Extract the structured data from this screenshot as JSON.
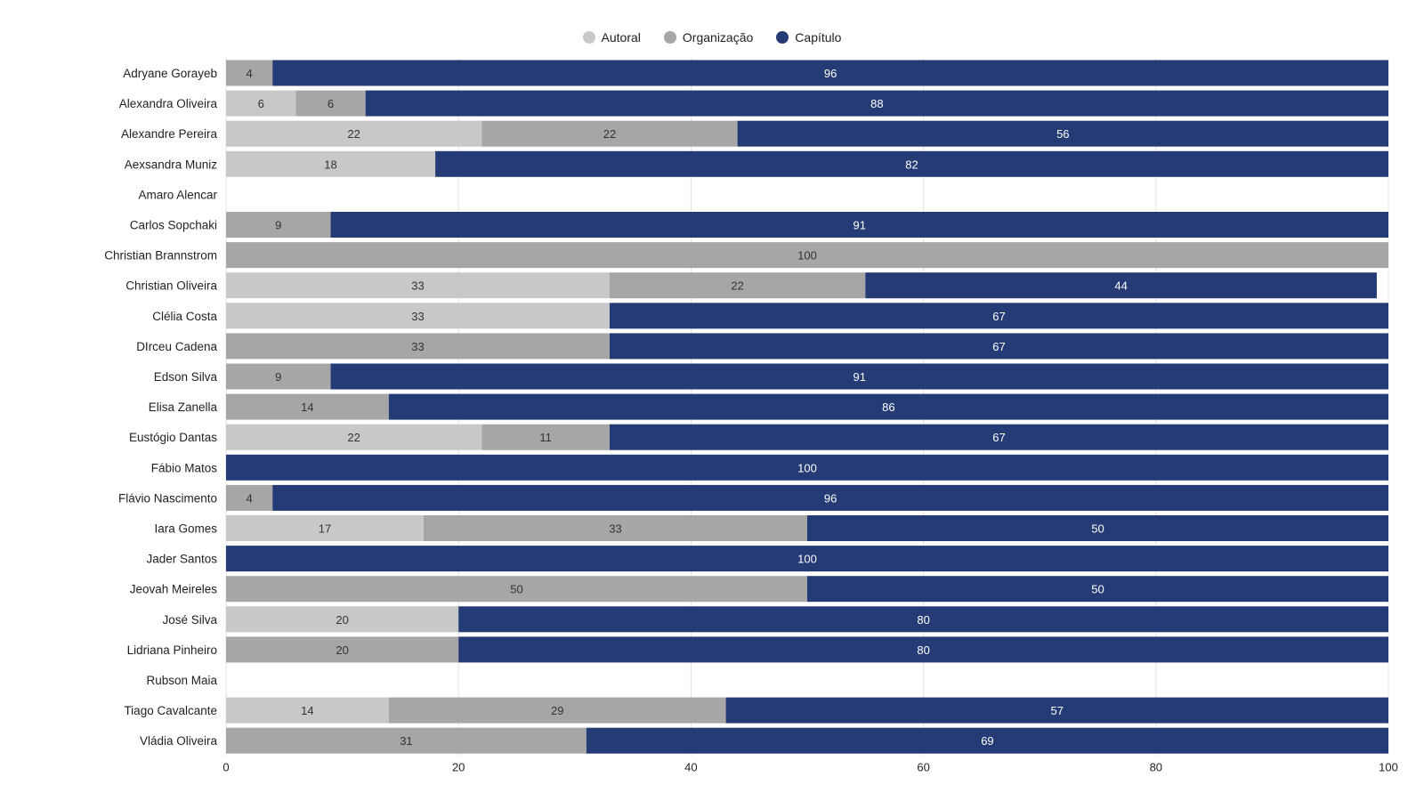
{
  "chart_data": {
    "type": "bar",
    "orientation": "horizontal",
    "stacked": true,
    "title": "",
    "xlabel": "",
    "ylabel": "",
    "xlim": [
      0,
      100
    ],
    "x_ticks": [
      0,
      20,
      40,
      60,
      80,
      100
    ],
    "grid": true,
    "legend_position": "top-center",
    "categories": [
      "Adryane Gorayeb",
      "Alexandra Oliveira",
      "Alexandre Pereira",
      "Aexsandra Muniz",
      "Amaro Alencar",
      "Carlos Sopchaki",
      "Christian Brannstrom",
      "Christian Oliveira",
      "Clélia Costa",
      "DIrceu Cadena",
      "Edson Silva",
      "Elisa Zanella",
      "Eustógio Dantas",
      "Fábio Matos",
      "Flávio Nascimento",
      "Iara Gomes",
      "Jader Santos",
      "Jeovah Meireles",
      "José Silva",
      "Lidriana Pinheiro",
      "Rubson Maia",
      "Tiago Cavalcante",
      "Vládia Oliveira"
    ],
    "series": [
      {
        "name": "Autoral",
        "color": "#c8c8c8",
        "label_color": "#333333",
        "values": [
          0,
          6,
          22,
          18,
          0,
          0,
          0,
          33,
          33,
          0,
          0,
          0,
          22,
          0,
          0,
          17,
          0,
          0,
          20,
          0,
          0,
          14,
          0
        ]
      },
      {
        "name": "Organização",
        "color": "#a6a6a6",
        "label_color": "#333333",
        "values": [
          4,
          6,
          22,
          0,
          0,
          9,
          100,
          22,
          0,
          33,
          9,
          14,
          11,
          0,
          4,
          33,
          0,
          50,
          0,
          20,
          0,
          29,
          31
        ]
      },
      {
        "name": "Capítulo",
        "color": "#253b75",
        "label_color": "#ffffff",
        "values": [
          96,
          88,
          56,
          82,
          0,
          91,
          0,
          44,
          67,
          67,
          91,
          86,
          67,
          100,
          96,
          50,
          100,
          50,
          80,
          80,
          0,
          57,
          69
        ]
      }
    ]
  }
}
